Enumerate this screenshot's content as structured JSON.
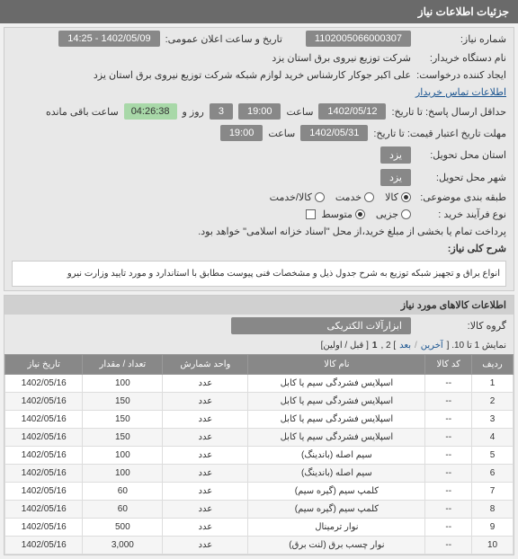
{
  "header": {
    "title": "جزئیات اطلاعات نیاز"
  },
  "info": {
    "need_number_label": "شماره نیاز:",
    "need_number": "1102005066000307",
    "announce_datetime_label": "تاریخ و ساعت اعلان عمومی:",
    "announce_datetime": "1402/05/09 - 14:25",
    "buyer_dept_label": "نام دستگاه خریدار:",
    "buyer_dept": "شرکت توزیع نیروی برق استان یزد",
    "creator_label": "ایجاد کننده درخواست:",
    "creator": "علی اکبر جوکار  کارشناس خرید لوازم شبکه  شرکت توزیع نیروی برق استان یزد",
    "buyer_contact_link": "اطلاعات تماس خریدار",
    "response_deadline_label": "حداقل ارسال پاسخ: تا تاریخ:",
    "response_date": "1402/05/12",
    "response_time_label": "ساعت",
    "response_time": "19:00",
    "days_label": "روز و",
    "days_value": "3",
    "timer": "04:26:38",
    "timer_suffix": "ساعت باقی مانده",
    "price_validity_label": "مهلت تاریخ اعتبار قیمت: تا تاریخ:",
    "price_date": "1402/05/31",
    "price_time_label": "ساعت",
    "price_time": "19:00",
    "province_service_label": "استان محل تحویل:",
    "province_service": "یزد",
    "city_service_label": "شهر محل تحویل:",
    "city_service": "یزد",
    "subject_cat_label": "طبقه بندی موضوعی:",
    "subject_goods": "کالا",
    "subject_service": "خدمت",
    "subject_both": "کالا/خدمت",
    "process_type_label": "نوع فرآیند خرید :",
    "process_small": "جزیی",
    "process_medium": "متوسط",
    "payment_note": "پرداخت تمام یا بخشی از مبلغ خرید،از محل \"اسناد خزانه اسلامی\" خواهد بود.",
    "desc_title_label": "شرح کلی نیاز:",
    "desc_text": "انواع یراق و تجهیز شبکه توزیع به شرح جدول ذیل و مشخصات فنی پیوست مطابق با استاندارد و مورد تایید وزارت نیرو"
  },
  "goods": {
    "section_title": "اطلاعات کالاهای مورد نیاز",
    "group_label": "گروه کالا:",
    "group_value": "ابزارآلات الکتریکی",
    "pager_text": "نمایش 1 تا 10. [",
    "pager_prev": "آخرین",
    "pager_next": "بعد",
    "pager_mid": "] 2 ,",
    "pager_first": "1",
    "pager_end": "[ قبل / اولین]",
    "columns": {
      "row": "ردیف",
      "code": "کد کالا",
      "name": "نام کالا",
      "unit": "واحد شمارش",
      "qty": "تعداد / مقدار",
      "date": "تاریخ نیاز"
    },
    "rows": [
      {
        "n": "1",
        "code": "--",
        "name": "اسپلایس فشردگی سیم یا کابل",
        "unit": "عدد",
        "qty": "100",
        "date": "1402/05/16"
      },
      {
        "n": "2",
        "code": "--",
        "name": "اسپلایس فشردگی سیم یا کابل",
        "unit": "عدد",
        "qty": "150",
        "date": "1402/05/16"
      },
      {
        "n": "3",
        "code": "--",
        "name": "اسپلایس فشردگی سیم یا کابل",
        "unit": "عدد",
        "qty": "150",
        "date": "1402/05/16"
      },
      {
        "n": "4",
        "code": "--",
        "name": "اسپلایس فشردگی سیم یا کابل",
        "unit": "عدد",
        "qty": "150",
        "date": "1402/05/16"
      },
      {
        "n": "5",
        "code": "--",
        "name": "سیم اصله (باندینگ)",
        "unit": "عدد",
        "qty": "100",
        "date": "1402/05/16"
      },
      {
        "n": "6",
        "code": "--",
        "name": "سیم اصله (باندینگ)",
        "unit": "عدد",
        "qty": "100",
        "date": "1402/05/16"
      },
      {
        "n": "7",
        "code": "--",
        "name": "کلمپ سیم (گیره سیم)",
        "unit": "عدد",
        "qty": "60",
        "date": "1402/05/16"
      },
      {
        "n": "8",
        "code": "--",
        "name": "کلمپ سیم (گیره سیم)",
        "unit": "عدد",
        "qty": "60",
        "date": "1402/05/16"
      },
      {
        "n": "9",
        "code": "--",
        "name": "نوار ترمینال",
        "unit": "عدد",
        "qty": "500",
        "date": "1402/05/16"
      },
      {
        "n": "10",
        "code": "--",
        "name": "نوار چسب برق (لنت برق)",
        "unit": "عدد",
        "qty": "3,000",
        "date": "1402/05/16"
      }
    ]
  }
}
